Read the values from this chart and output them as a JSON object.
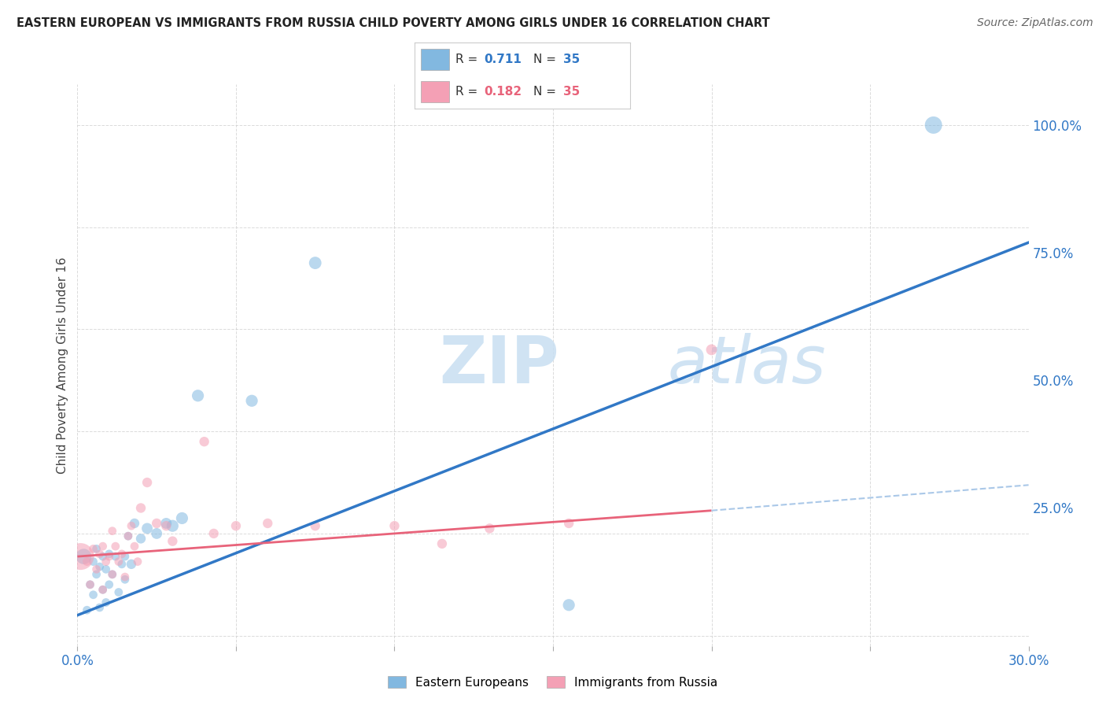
{
  "title": "EASTERN EUROPEAN VS IMMIGRANTS FROM RUSSIA CHILD POVERTY AMONG GIRLS UNDER 16 CORRELATION CHART",
  "source": "Source: ZipAtlas.com",
  "ylabel": "Child Poverty Among Girls Under 16",
  "xlim": [
    0.0,
    0.3
  ],
  "ylim": [
    -0.02,
    1.08
  ],
  "xticks": [
    0.0,
    0.05,
    0.1,
    0.15,
    0.2,
    0.25,
    0.3
  ],
  "xticklabels": [
    "0.0%",
    "",
    "",
    "",
    "",
    "",
    "30.0%"
  ],
  "yticks_right": [
    0.0,
    0.25,
    0.5,
    0.75,
    1.0
  ],
  "ytick_right_labels": [
    "",
    "25.0%",
    "50.0%",
    "75.0%",
    "100.0%"
  ],
  "legend_blue_R": "0.711",
  "legend_blue_N": "35",
  "legend_pink_R": "0.182",
  "legend_pink_N": "35",
  "watermark_ZIP": "ZIP",
  "watermark_atlas": "atlas",
  "blue_color": "#82b8e0",
  "pink_color": "#f4a0b5",
  "blue_line_color": "#3178c6",
  "pink_line_color": "#e8637a",
  "dashed_line_color": "#aac8e8",
  "blue_scatter_x": [
    0.002,
    0.003,
    0.004,
    0.005,
    0.005,
    0.006,
    0.006,
    0.007,
    0.007,
    0.008,
    0.008,
    0.009,
    0.009,
    0.01,
    0.01,
    0.011,
    0.012,
    0.013,
    0.014,
    0.015,
    0.015,
    0.016,
    0.017,
    0.018,
    0.02,
    0.022,
    0.025,
    0.028,
    0.03,
    0.033,
    0.038,
    0.055,
    0.075,
    0.155,
    0.27
  ],
  "blue_scatter_y": [
    0.155,
    0.05,
    0.1,
    0.08,
    0.145,
    0.12,
    0.17,
    0.055,
    0.135,
    0.09,
    0.155,
    0.065,
    0.13,
    0.1,
    0.16,
    0.12,
    0.155,
    0.085,
    0.14,
    0.155,
    0.11,
    0.195,
    0.14,
    0.22,
    0.19,
    0.21,
    0.2,
    0.22,
    0.215,
    0.23,
    0.47,
    0.46,
    0.73,
    0.06,
    1.0
  ],
  "blue_scatter_size": [
    200,
    60,
    60,
    60,
    60,
    60,
    60,
    60,
    60,
    60,
    60,
    60,
    60,
    60,
    60,
    60,
    60,
    60,
    60,
    60,
    60,
    60,
    80,
    80,
    80,
    100,
    100,
    100,
    120,
    120,
    120,
    120,
    130,
    120,
    250
  ],
  "pink_scatter_x": [
    0.001,
    0.003,
    0.004,
    0.005,
    0.006,
    0.007,
    0.008,
    0.008,
    0.009,
    0.01,
    0.011,
    0.011,
    0.012,
    0.013,
    0.014,
    0.015,
    0.016,
    0.017,
    0.018,
    0.019,
    0.02,
    0.022,
    0.025,
    0.028,
    0.03,
    0.04,
    0.043,
    0.05,
    0.06,
    0.075,
    0.1,
    0.115,
    0.13,
    0.155,
    0.2
  ],
  "pink_scatter_y": [
    0.155,
    0.145,
    0.1,
    0.17,
    0.13,
    0.16,
    0.09,
    0.175,
    0.145,
    0.155,
    0.12,
    0.205,
    0.175,
    0.145,
    0.16,
    0.115,
    0.195,
    0.215,
    0.175,
    0.145,
    0.25,
    0.3,
    0.22,
    0.215,
    0.185,
    0.38,
    0.2,
    0.215,
    0.22,
    0.215,
    0.215,
    0.18,
    0.21,
    0.22,
    0.56
  ],
  "pink_scatter_size": [
    600,
    60,
    60,
    60,
    60,
    60,
    60,
    60,
    60,
    60,
    60,
    60,
    60,
    60,
    60,
    60,
    60,
    60,
    60,
    60,
    80,
    80,
    80,
    80,
    80,
    80,
    80,
    80,
    80,
    80,
    80,
    80,
    80,
    80,
    100
  ],
  "blue_trend_x": [
    0.0,
    0.3
  ],
  "blue_trend_y": [
    0.04,
    0.77
  ],
  "pink_trend_x": [
    0.0,
    0.2
  ],
  "pink_trend_y": [
    0.155,
    0.245
  ],
  "dashed_trend_x": [
    0.2,
    0.3
  ],
  "dashed_trend_y": [
    0.245,
    0.295
  ],
  "grid_color": "#cccccc",
  "background_color": "#ffffff"
}
